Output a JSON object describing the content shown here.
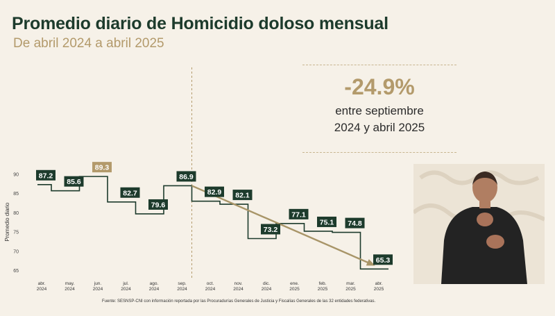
{
  "header": {
    "title": "Promedio diario de Homicidio doloso mensual",
    "subtitle": "De abril 2024 a abril 2025"
  },
  "kpi": {
    "value": "-24.9%",
    "line1": "entre septiembre",
    "line2": "2024 y abril 2025"
  },
  "source": "Fuente: SESNSP-CNI con información reportada por las Procuradurías Generales de Justicia y Fiscalías Generales de las 32 entidades federativas.",
  "chart_data": {
    "type": "line",
    "title": "Promedio diario de Homicidio doloso mensual",
    "subtitle": "De abril 2024 a abril 2025",
    "ylabel": "Promedio diario",
    "xlabel": "",
    "ylim": [
      64,
      91
    ],
    "yticks": [
      65,
      70,
      75,
      80,
      85,
      90
    ],
    "categories": [
      [
        "abr.",
        "2024"
      ],
      [
        "may.",
        "2024"
      ],
      [
        "jun.",
        "2024"
      ],
      [
        "jul.",
        "2024"
      ],
      [
        "ago.",
        "2024"
      ],
      [
        "sep.",
        "2024"
      ],
      [
        "oct.",
        "2024"
      ],
      [
        "nov.",
        "2024"
      ],
      [
        "dic.",
        "2024"
      ],
      [
        "ene.",
        "2025"
      ],
      [
        "feb.",
        "2025"
      ],
      [
        "mar.",
        "2025"
      ],
      [
        "abr.",
        "2025"
      ]
    ],
    "values": [
      87.2,
      85.6,
      89.3,
      82.7,
      79.6,
      86.9,
      82.9,
      82.1,
      73.2,
      77.1,
      75.1,
      74.8,
      65.3
    ],
    "highlight_index": 2,
    "trend": {
      "from_index": 5,
      "to_index": 12
    },
    "divider_after_index": 5,
    "colors": {
      "series": "#1d3b2c",
      "highlight": "#b39a6b",
      "trend": "#a89568"
    },
    "grid": false
  }
}
